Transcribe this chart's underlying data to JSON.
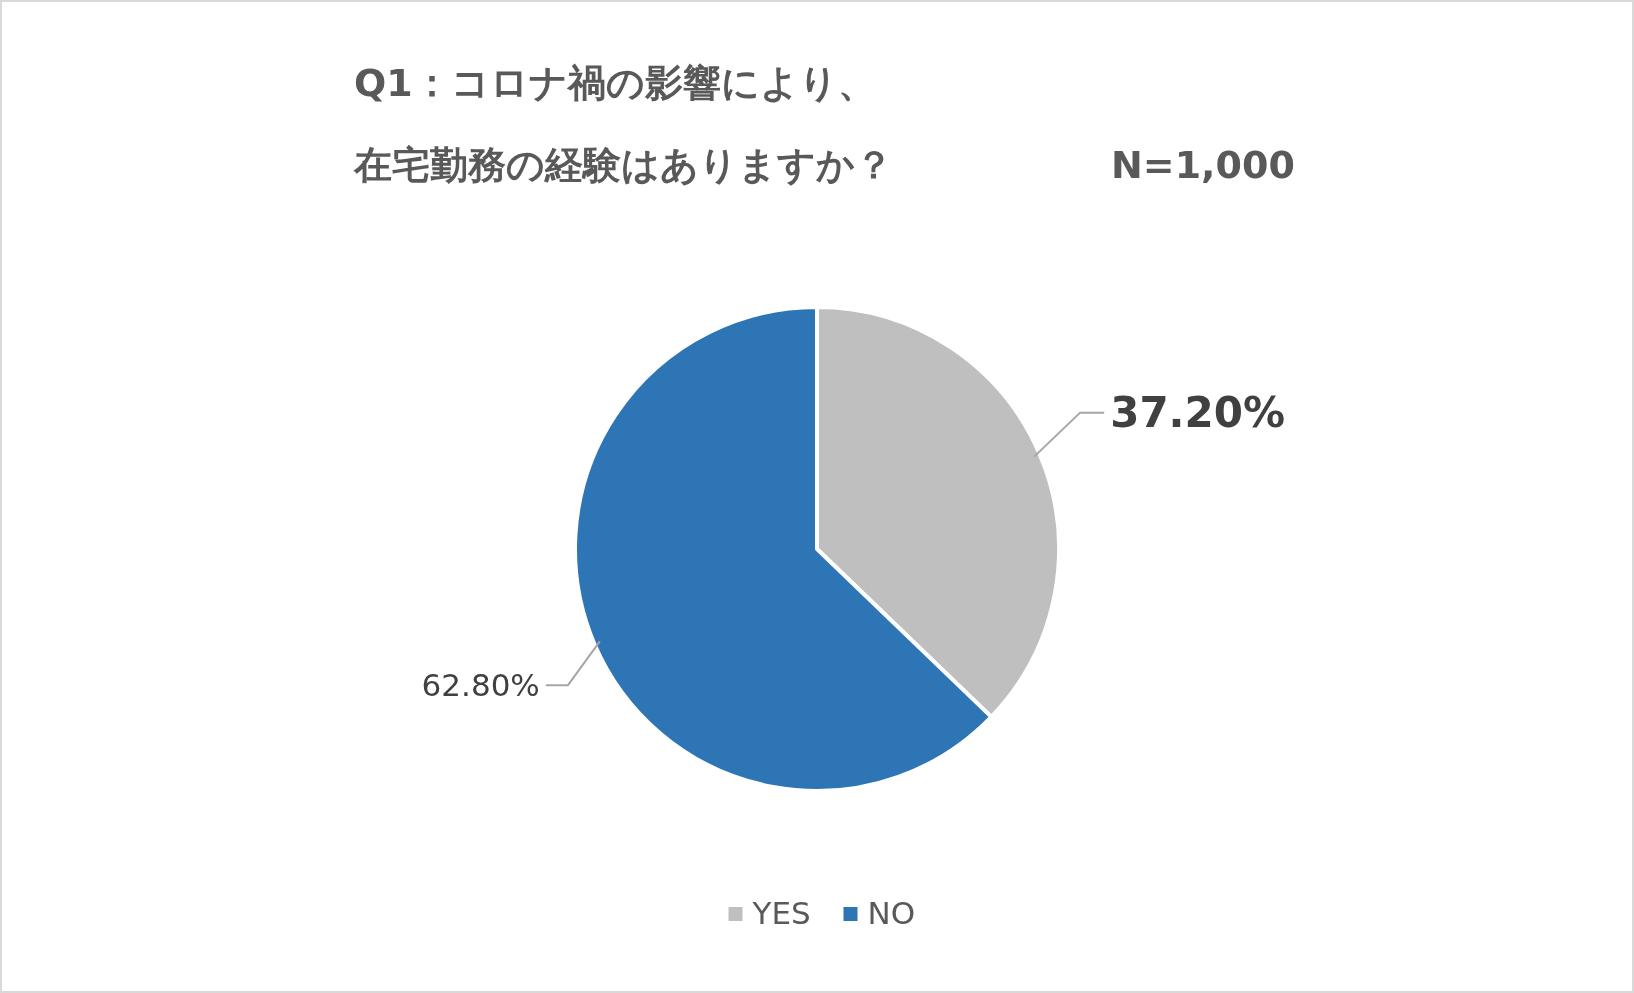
{
  "chart_data": {
    "type": "pie",
    "title": "Q1：コロナ禍の影響により、在宅勤務の経験はありますか？",
    "subtitle": "N=1,000",
    "categories": [
      "YES",
      "NO"
    ],
    "values": [
      37.2,
      62.8
    ],
    "colors": [
      "#bfbfbf",
      "#2e75b6"
    ],
    "value_labels": [
      "37.20%",
      "62.80%"
    ],
    "legend": "bottom"
  }
}
